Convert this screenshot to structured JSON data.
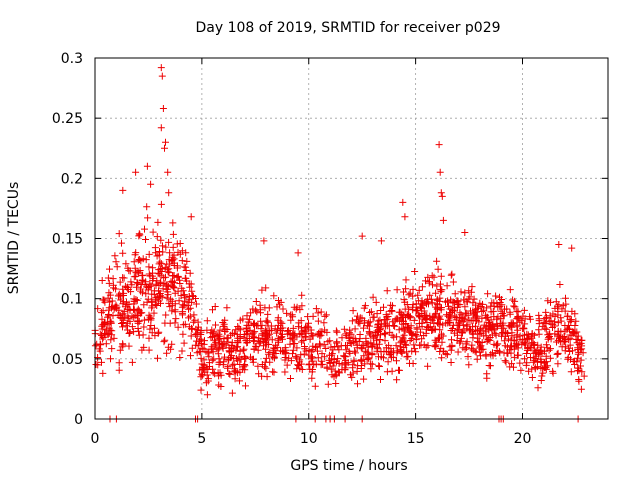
{
  "chart_data": {
    "type": "scatter",
    "title": "Day 108 of 2019, SRMTID for receiver p029",
    "xlabel": "GPS time / hours",
    "ylabel": "SRMTID / TECUs",
    "xlim": [
      0,
      24
    ],
    "ylim": [
      0,
      0.3
    ],
    "x_ticks": [
      0,
      5,
      10,
      15,
      20
    ],
    "x_tick_labels": [
      "0",
      "5",
      "10",
      "15",
      "20"
    ],
    "y_ticks": [
      0,
      0.05,
      0.1,
      0.15,
      0.2,
      0.25,
      0.3
    ],
    "y_tick_labels": [
      "0",
      "0.05",
      "0.1",
      "0.15",
      "0.2",
      "0.25",
      "0.3"
    ],
    "grid": true,
    "marker": "+",
    "color": "#ee0000",
    "envelope": [
      {
        "x": 0.0,
        "mean": 0.062,
        "spread": 0.03,
        "density": 30
      },
      {
        "x": 0.5,
        "mean": 0.08,
        "spread": 0.035,
        "density": 40
      },
      {
        "x": 1.0,
        "mean": 0.1,
        "spread": 0.045,
        "density": 45
      },
      {
        "x": 1.5,
        "mean": 0.095,
        "spread": 0.045,
        "density": 45
      },
      {
        "x": 2.0,
        "mean": 0.105,
        "spread": 0.05,
        "density": 50
      },
      {
        "x": 2.5,
        "mean": 0.11,
        "spread": 0.055,
        "density": 55
      },
      {
        "x": 3.0,
        "mean": 0.11,
        "spread": 0.05,
        "density": 55
      },
      {
        "x": 3.5,
        "mean": 0.11,
        "spread": 0.045,
        "density": 50
      },
      {
        "x": 4.0,
        "mean": 0.105,
        "spread": 0.04,
        "density": 45
      },
      {
        "x": 4.5,
        "mean": 0.095,
        "spread": 0.04,
        "density": 40
      },
      {
        "x": 5.0,
        "mean": 0.05,
        "spread": 0.025,
        "density": 35
      },
      {
        "x": 5.5,
        "mean": 0.06,
        "spread": 0.03,
        "density": 40
      },
      {
        "x": 6.0,
        "mean": 0.06,
        "spread": 0.03,
        "density": 40
      },
      {
        "x": 6.5,
        "mean": 0.058,
        "spread": 0.028,
        "density": 40
      },
      {
        "x": 7.0,
        "mean": 0.06,
        "spread": 0.03,
        "density": 40
      },
      {
        "x": 7.5,
        "mean": 0.07,
        "spread": 0.03,
        "density": 40
      },
      {
        "x": 8.0,
        "mean": 0.07,
        "spread": 0.032,
        "density": 40
      },
      {
        "x": 8.5,
        "mean": 0.065,
        "spread": 0.03,
        "density": 35
      },
      {
        "x": 9.0,
        "mean": 0.065,
        "spread": 0.03,
        "density": 35
      },
      {
        "x": 9.5,
        "mean": 0.07,
        "spread": 0.032,
        "density": 35
      },
      {
        "x": 10.0,
        "mean": 0.065,
        "spread": 0.03,
        "density": 35
      },
      {
        "x": 10.5,
        "mean": 0.065,
        "spread": 0.028,
        "density": 30
      },
      {
        "x": 11.0,
        "mean": 0.055,
        "spread": 0.025,
        "density": 25
      },
      {
        "x": 11.5,
        "mean": 0.055,
        "spread": 0.025,
        "density": 30
      },
      {
        "x": 12.0,
        "mean": 0.06,
        "spread": 0.028,
        "density": 35
      },
      {
        "x": 12.5,
        "mean": 0.065,
        "spread": 0.03,
        "density": 40
      },
      {
        "x": 13.0,
        "mean": 0.065,
        "spread": 0.03,
        "density": 40
      },
      {
        "x": 13.5,
        "mean": 0.065,
        "spread": 0.03,
        "density": 40
      },
      {
        "x": 14.0,
        "mean": 0.07,
        "spread": 0.032,
        "density": 40
      },
      {
        "x": 14.5,
        "mean": 0.075,
        "spread": 0.035,
        "density": 45
      },
      {
        "x": 15.0,
        "mean": 0.08,
        "spread": 0.035,
        "density": 45
      },
      {
        "x": 15.5,
        "mean": 0.085,
        "spread": 0.035,
        "density": 45
      },
      {
        "x": 16.0,
        "mean": 0.09,
        "spread": 0.035,
        "density": 45
      },
      {
        "x": 16.5,
        "mean": 0.085,
        "spread": 0.035,
        "density": 45
      },
      {
        "x": 17.0,
        "mean": 0.08,
        "spread": 0.033,
        "density": 45
      },
      {
        "x": 17.5,
        "mean": 0.08,
        "spread": 0.033,
        "density": 45
      },
      {
        "x": 18.0,
        "mean": 0.075,
        "spread": 0.032,
        "density": 45
      },
      {
        "x": 18.5,
        "mean": 0.075,
        "spread": 0.032,
        "density": 45
      },
      {
        "x": 19.0,
        "mean": 0.075,
        "spread": 0.032,
        "density": 45
      },
      {
        "x": 19.5,
        "mean": 0.07,
        "spread": 0.03,
        "density": 40
      },
      {
        "x": 20.0,
        "mean": 0.068,
        "spread": 0.03,
        "density": 40
      },
      {
        "x": 20.5,
        "mean": 0.06,
        "spread": 0.028,
        "density": 40
      },
      {
        "x": 21.0,
        "mean": 0.06,
        "spread": 0.028,
        "density": 40
      },
      {
        "x": 21.5,
        "mean": 0.07,
        "spread": 0.03,
        "density": 40
      },
      {
        "x": 22.0,
        "mean": 0.075,
        "spread": 0.032,
        "density": 40
      },
      {
        "x": 22.5,
        "mean": 0.06,
        "spread": 0.03,
        "density": 35
      },
      {
        "x": 22.9,
        "mean": 0.05,
        "spread": 0.025,
        "density": 25
      }
    ],
    "peaks": [
      {
        "x": 1.3,
        "y": 0.19
      },
      {
        "x": 1.9,
        "y": 0.205
      },
      {
        "x": 2.45,
        "y": 0.21
      },
      {
        "x": 2.6,
        "y": 0.195
      },
      {
        "x": 3.1,
        "y": 0.292
      },
      {
        "x": 3.15,
        "y": 0.285
      },
      {
        "x": 3.2,
        "y": 0.258
      },
      {
        "x": 3.1,
        "y": 0.242
      },
      {
        "x": 3.3,
        "y": 0.23
      },
      {
        "x": 3.25,
        "y": 0.225
      },
      {
        "x": 3.4,
        "y": 0.205
      },
      {
        "x": 3.45,
        "y": 0.188
      },
      {
        "x": 4.5,
        "y": 0.168
      },
      {
        "x": 7.9,
        "y": 0.148
      },
      {
        "x": 9.5,
        "y": 0.138
      },
      {
        "x": 12.5,
        "y": 0.152
      },
      {
        "x": 13.4,
        "y": 0.148
      },
      {
        "x": 14.4,
        "y": 0.18
      },
      {
        "x": 14.5,
        "y": 0.168
      },
      {
        "x": 16.1,
        "y": 0.228
      },
      {
        "x": 16.15,
        "y": 0.205
      },
      {
        "x": 16.2,
        "y": 0.188
      },
      {
        "x": 16.25,
        "y": 0.185
      },
      {
        "x": 16.3,
        "y": 0.165
      },
      {
        "x": 17.3,
        "y": 0.155
      },
      {
        "x": 21.7,
        "y": 0.145
      },
      {
        "x": 22.3,
        "y": 0.142
      }
    ],
    "zero_markers_x": [
      0.7,
      1.0,
      4.7,
      4.8,
      9.4,
      10.3,
      10.8,
      11.0,
      11.2,
      11.7,
      12.5,
      18.9,
      19.0,
      19.1,
      22.6
    ]
  }
}
